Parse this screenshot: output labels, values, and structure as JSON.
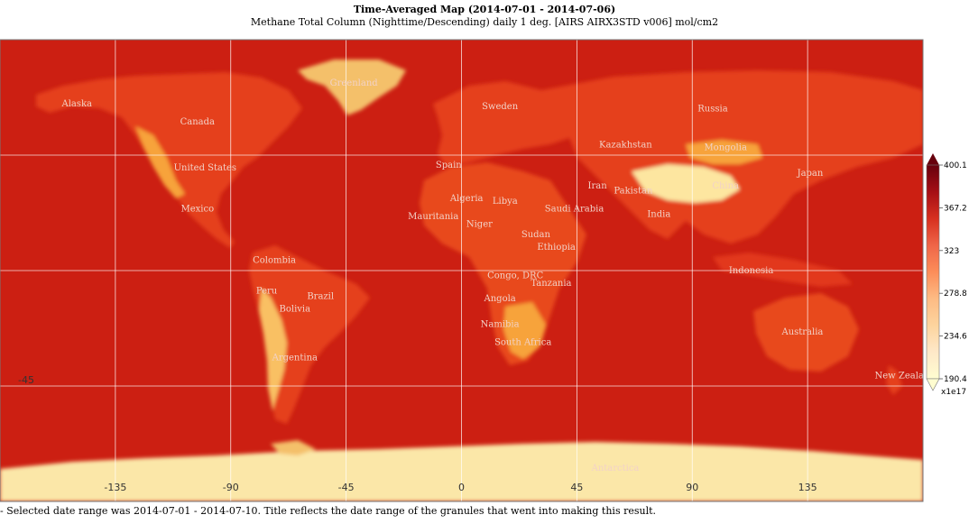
{
  "title": "Time-Averaged Map (2014-07-01 - 2014-07-06)",
  "subtitle": "Methane Total Column (Nighttime/Descending) daily 1 deg. [AIRS AIRX3STD v006] mol/cm2",
  "footnote": "- Selected date range was 2014-07-01 - 2014-07-10. Title reflects the date range of the granules that went into making this result.",
  "map": {
    "lon_ticks": [
      {
        "value": -135,
        "label": "-135"
      },
      {
        "value": -90,
        "label": "-90"
      },
      {
        "value": -45,
        "label": "-45"
      },
      {
        "value": 0,
        "label": "0"
      },
      {
        "value": 45,
        "label": "45"
      },
      {
        "value": 90,
        "label": "90"
      },
      {
        "value": 135,
        "label": "135"
      }
    ],
    "lat_ticks": [
      {
        "value": -45,
        "label": "-45"
      }
    ],
    "lat_grid": [
      45,
      0,
      -45
    ],
    "colors": {
      "ocean": "#cc1f12",
      "land_high": "#e8431c",
      "land_low": "#f7a33a",
      "land_lowest": "#fde6a0",
      "greenland": "#f4c06b",
      "antarctica": "#fbe7a8",
      "grid": "#ffffff",
      "label": "#f2d2c8"
    },
    "place_labels": [
      {
        "name": "Greenland",
        "lon": -42,
        "lat": 72
      },
      {
        "name": "Alaska",
        "lon": -150,
        "lat": 64
      },
      {
        "name": "Canada",
        "lon": -103,
        "lat": 57
      },
      {
        "name": "Sweden",
        "lon": 15,
        "lat": 63
      },
      {
        "name": "Russia",
        "lon": 98,
        "lat": 62
      },
      {
        "name": "Kazakhstan",
        "lon": 64,
        "lat": 48
      },
      {
        "name": "Mongolia",
        "lon": 103,
        "lat": 47
      },
      {
        "name": "United States",
        "lon": -100,
        "lat": 39
      },
      {
        "name": "Spain",
        "lon": -5,
        "lat": 40
      },
      {
        "name": "China",
        "lon": 103,
        "lat": 32
      },
      {
        "name": "Japan",
        "lon": 136,
        "lat": 37
      },
      {
        "name": "Iran",
        "lon": 53,
        "lat": 32
      },
      {
        "name": "Pakistan",
        "lon": 67,
        "lat": 30
      },
      {
        "name": "Algeria",
        "lon": 2,
        "lat": 27
      },
      {
        "name": "Libya",
        "lon": 17,
        "lat": 26
      },
      {
        "name": "Saudi Arabia",
        "lon": 44,
        "lat": 23
      },
      {
        "name": "Mexico",
        "lon": -103,
        "lat": 23
      },
      {
        "name": "India",
        "lon": 77,
        "lat": 21
      },
      {
        "name": "Mauritania",
        "lon": -11,
        "lat": 20
      },
      {
        "name": "Niger",
        "lon": 7,
        "lat": 17
      },
      {
        "name": "Sudan",
        "lon": 29,
        "lat": 13
      },
      {
        "name": "Ethiopia",
        "lon": 37,
        "lat": 8
      },
      {
        "name": "Colombia",
        "lon": -73,
        "lat": 3
      },
      {
        "name": "Indonesia",
        "lon": 113,
        "lat": -1
      },
      {
        "name": "Congo, DRC",
        "lon": 21,
        "lat": -3
      },
      {
        "name": "Tanzania",
        "lon": 35,
        "lat": -6
      },
      {
        "name": "Peru",
        "lon": -76,
        "lat": -9
      },
      {
        "name": "Brazil",
        "lon": -55,
        "lat": -11
      },
      {
        "name": "Angola",
        "lon": 15,
        "lat": -12
      },
      {
        "name": "Bolivia",
        "lon": -65,
        "lat": -16
      },
      {
        "name": "Namibia",
        "lon": 15,
        "lat": -22
      },
      {
        "name": "Australia",
        "lon": 133,
        "lat": -25
      },
      {
        "name": "South Africa",
        "lon": 24,
        "lat": -29
      },
      {
        "name": "Argentina",
        "lon": -65,
        "lat": -35
      },
      {
        "name": "New Zealand",
        "lon": 173,
        "lat": -42
      },
      {
        "name": "Antarctica",
        "lon": 60,
        "lat": -78
      }
    ]
  },
  "colorbar": {
    "labels": [
      "400.1",
      "367.2",
      "323",
      "278.8",
      "234.6",
      "190.4"
    ],
    "multiplier": "x1e17",
    "stops": [
      "#67000d",
      "#a50f15",
      "#d7301f",
      "#ef6548",
      "#fc8d59",
      "#fdbb84",
      "#fdd49e",
      "#fee8c8",
      "#fffdd0"
    ]
  }
}
